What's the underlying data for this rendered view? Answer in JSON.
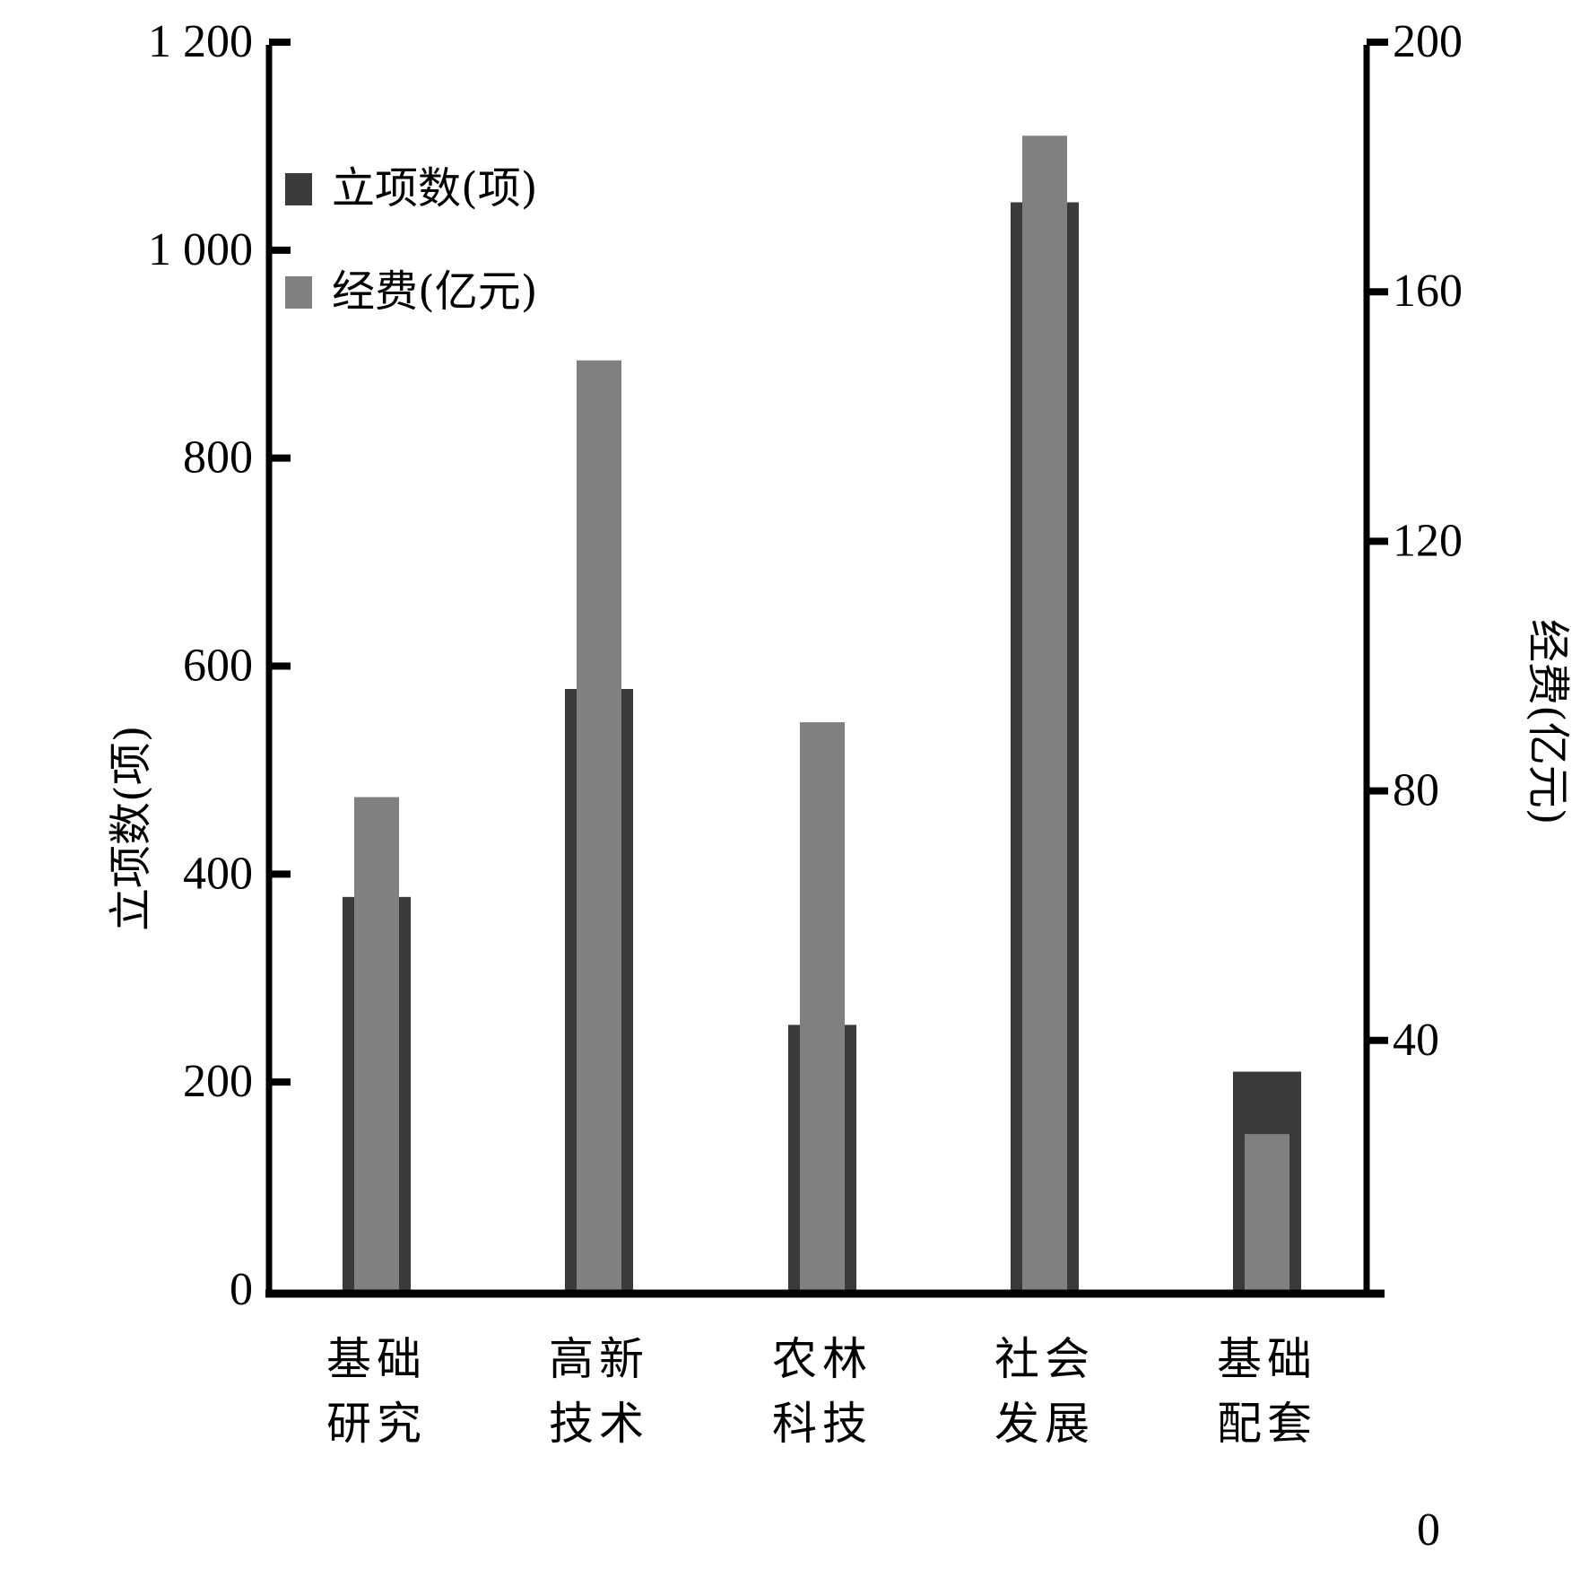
{
  "chart_data": {
    "type": "bar",
    "title": "",
    "categories": [
      "基础研究",
      "高新技术",
      "农林科技",
      "社会发展",
      "基础配套"
    ],
    "category_lines": [
      [
        "基础",
        "研究"
      ],
      [
        "高新",
        "技术"
      ],
      [
        "农林",
        "科技"
      ],
      [
        "社会",
        "发展"
      ],
      [
        "基础",
        "配套"
      ]
    ],
    "series": [
      {
        "name": "立项数(项)",
        "axis": "left",
        "color": "#3a3a3a",
        "values": [
          378,
          578,
          255,
          1046,
          210
        ]
      },
      {
        "name": "经费(亿元)",
        "axis": "right",
        "color": "#808080",
        "values": [
          79,
          149,
          91,
          185,
          25
        ]
      }
    ],
    "ylabel_left": "立项数(项)",
    "ylabel_right": "经费(亿元)",
    "xlabel": "",
    "ylim_left": [
      0,
      1200
    ],
    "ylim_right": [
      0,
      200
    ],
    "yticks_left": [
      "0",
      "200",
      "400",
      "600",
      "800",
      "1 000",
      "1 200"
    ],
    "yticks_right": [
      "0",
      "40",
      "80",
      "120",
      "160",
      "200"
    ],
    "grid": false,
    "legend_position": "upper-left inside"
  },
  "legend": {
    "items": [
      {
        "label": "立项数(项)",
        "color": "#3a3a3a"
      },
      {
        "label": "经费(亿元)",
        "color": "#808080"
      }
    ]
  }
}
